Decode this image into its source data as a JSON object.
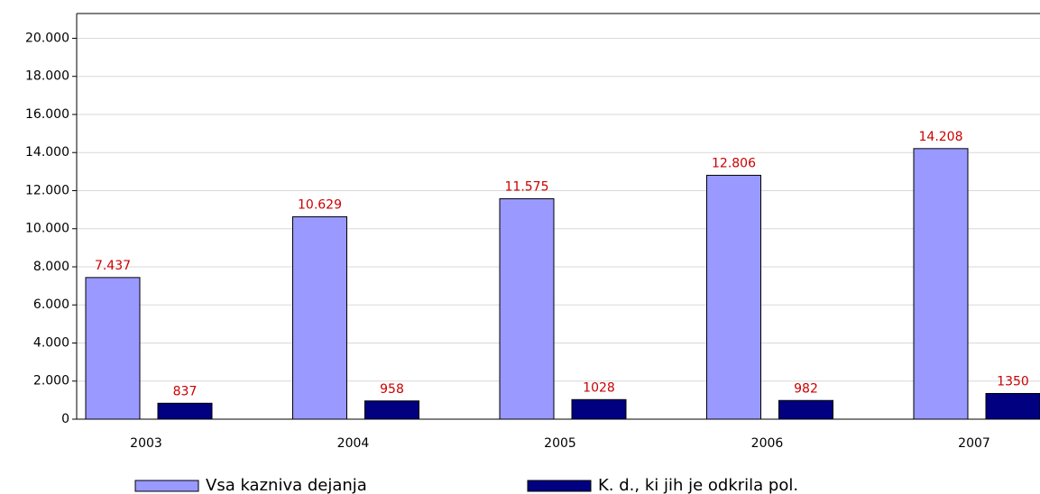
{
  "chart_data": {
    "type": "bar",
    "categories": [
      "2003",
      "2004",
      "2005",
      "2006",
      "2007"
    ],
    "series": [
      {
        "name": "Vsa kazniva dejanja",
        "color": "#9999ff",
        "values": [
          7437,
          10629,
          11575,
          12806,
          14208
        ],
        "value_labels": [
          "7.437",
          "10.629",
          "11.575",
          "12.806",
          "14.208"
        ]
      },
      {
        "name": "K. d., ki jih je odkrila pol.",
        "color": "#000080",
        "values": [
          837,
          958,
          1028,
          982,
          1350
        ]
      }
    ],
    "ylim": [
      0,
      21300
    ],
    "yticks": [
      0,
      {
        "value": 2000,
        "label": "2.000"
      },
      {
        "value": 4000,
        "label": "4.000"
      },
      {
        "value": 6000,
        "label": "6.000"
      },
      {
        "value": 8000,
        "label": "8.000"
      },
      {
        "value": 10000,
        "label": "10.000"
      },
      {
        "value": 12000,
        "label": "12.000"
      },
      {
        "value": 14000,
        "label": "14.000"
      },
      {
        "value": 16000,
        "label": "16.000"
      },
      {
        "value": 18000,
        "label": "18.000"
      },
      {
        "value": 20000,
        "label": "20.000"
      }
    ],
    "grid": true,
    "legend": "bottom"
  }
}
